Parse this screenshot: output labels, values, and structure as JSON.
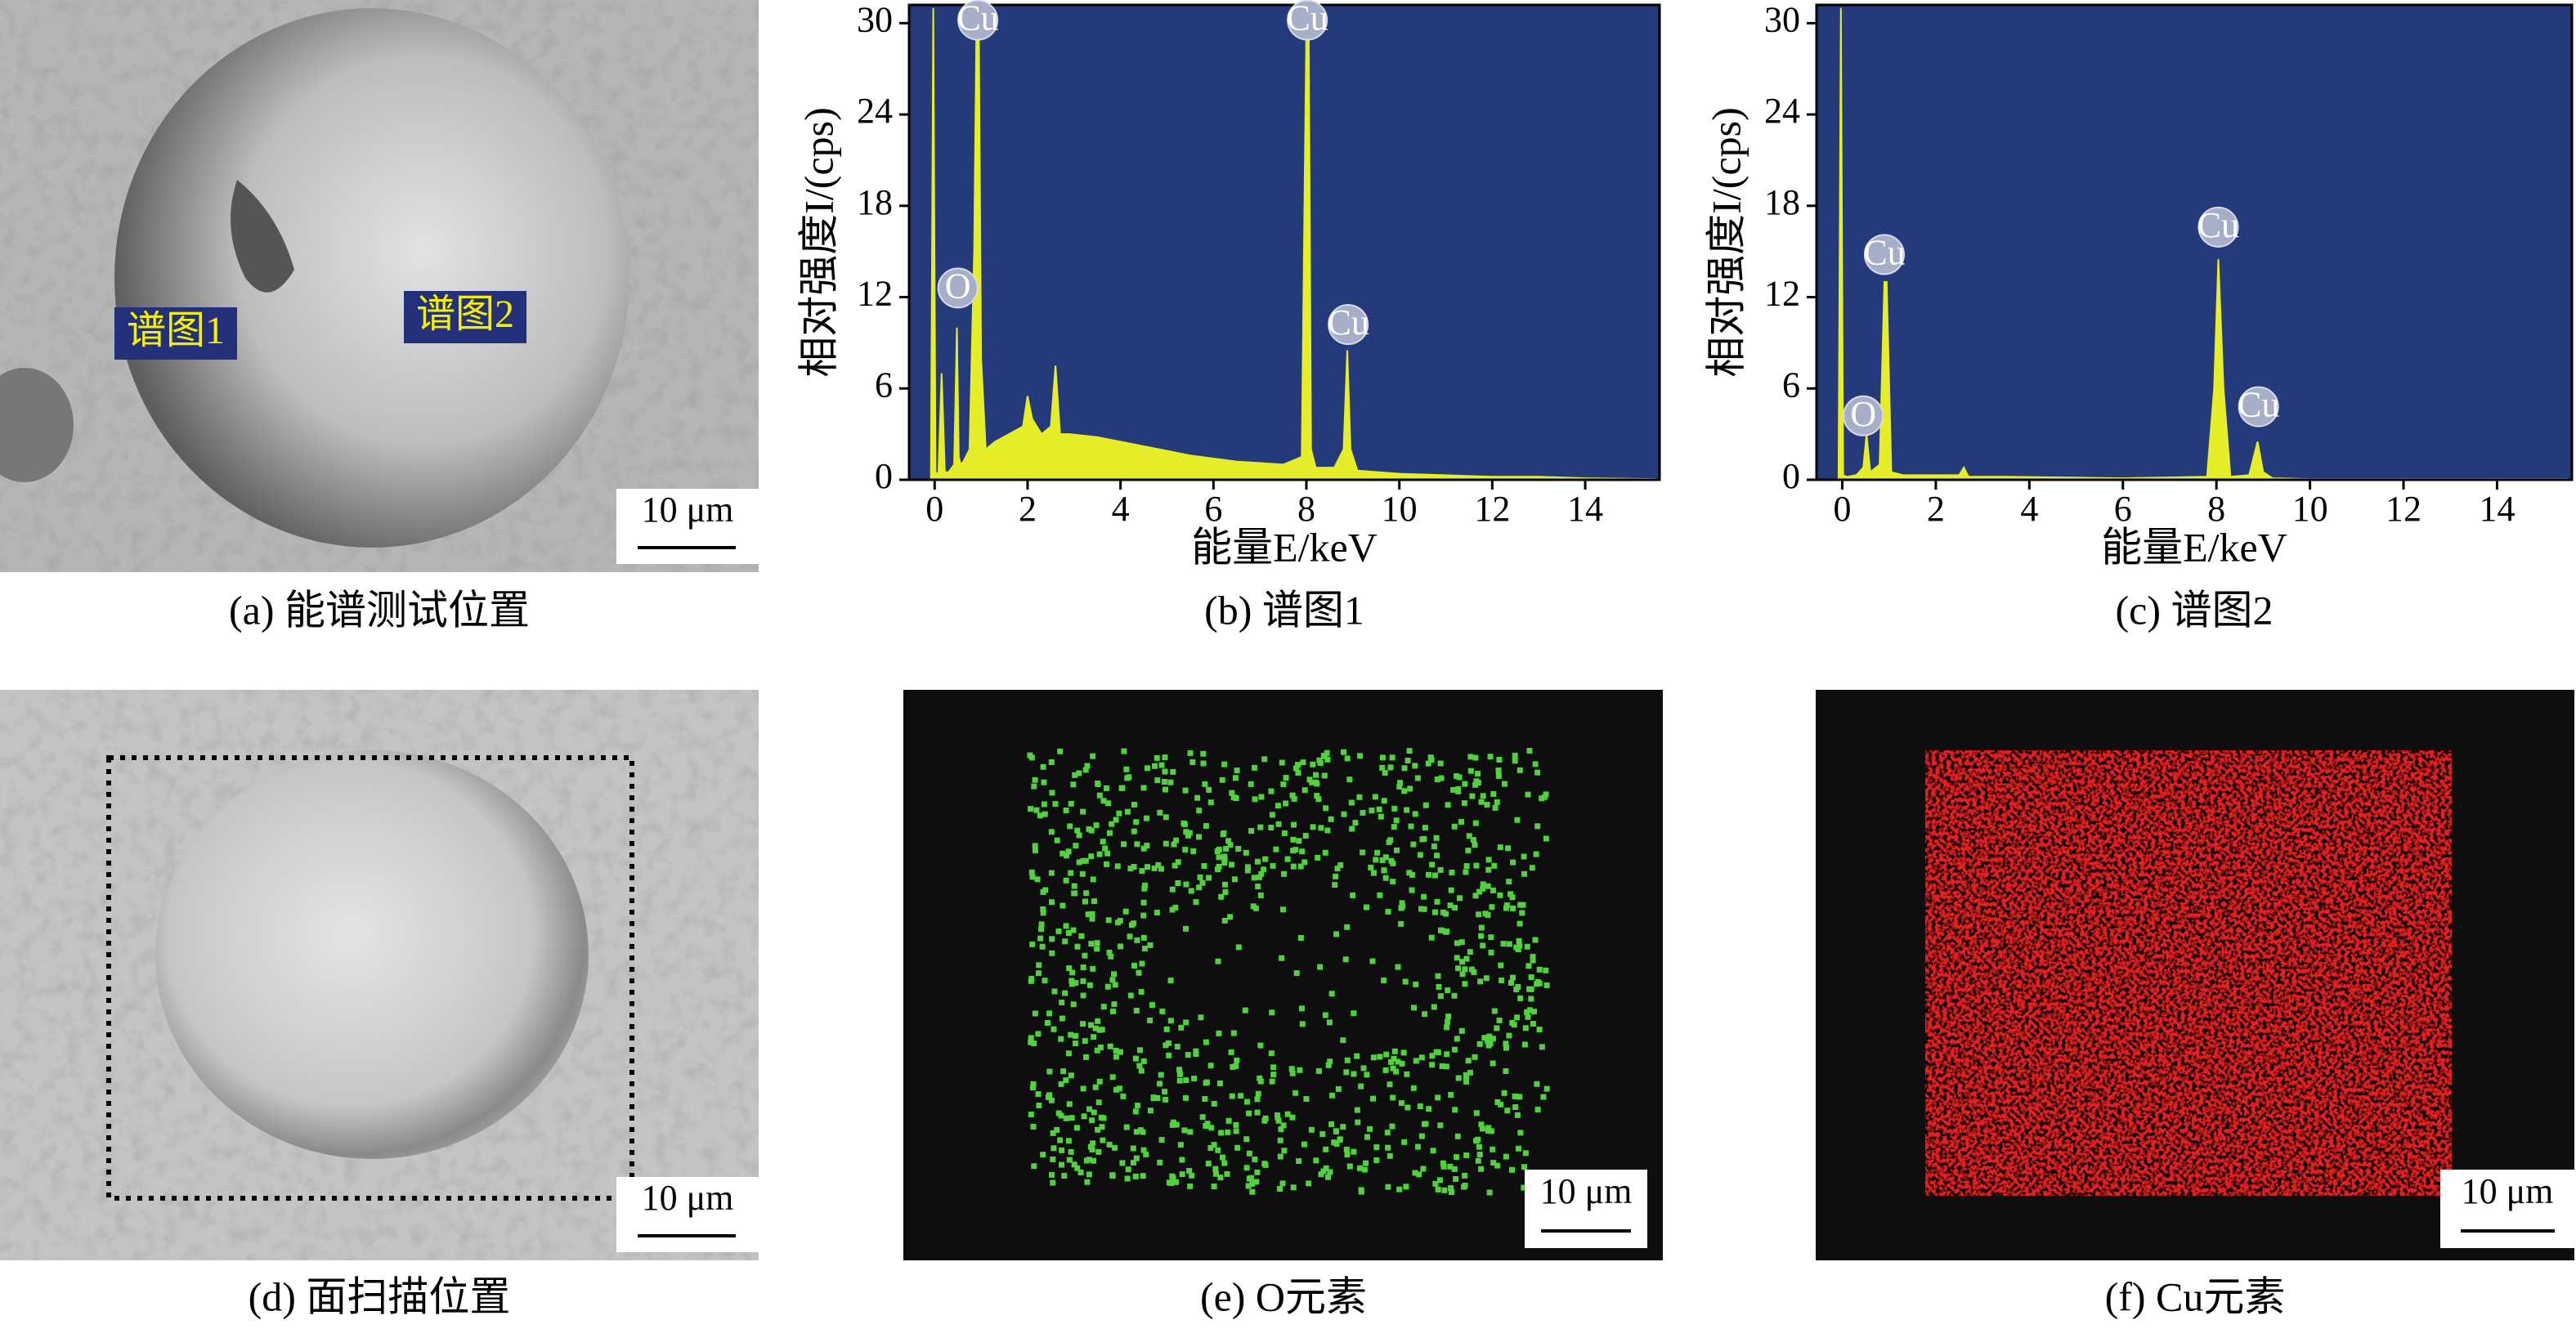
{
  "chart_data": [
    {
      "type": "area",
      "caption": "(b) 谱图1",
      "xlabel": "能量E/keV",
      "ylabel": "相对强度I/(cps)",
      "background": "#243a7a",
      "color": "#e6ee2a",
      "xlim": [
        -0.55,
        15.6
      ],
      "ylim": [
        0,
        31.2
      ],
      "xticks": [
        0,
        2,
        4,
        6,
        8,
        10,
        12,
        14
      ],
      "yticks": [
        0,
        6,
        12,
        18,
        24,
        30
      ],
      "annotations": [
        "Cu",
        "O",
        "Cu",
        "Cu"
      ],
      "x": [
        -0.3,
        -0.08,
        -0.03,
        0.02,
        0.08,
        0.15,
        0.22,
        0.3,
        0.42,
        0.48,
        0.52,
        0.56,
        0.62,
        0.75,
        0.85,
        0.9,
        0.95,
        1.0,
        1.1,
        1.3,
        1.6,
        1.9,
        2.0,
        2.1,
        2.3,
        2.5,
        2.6,
        2.7,
        2.9,
        3.5,
        4.5,
        5.5,
        6.5,
        7.5,
        7.9,
        8.0,
        8.05,
        8.1,
        8.2,
        8.6,
        8.8,
        8.88,
        8.95,
        9.1,
        10,
        11,
        12,
        13,
        14,
        15.5
      ],
      "values": [
        0,
        0,
        31,
        0.5,
        0.3,
        7,
        0.5,
        0.5,
        1,
        10,
        1.5,
        1,
        1.2,
        2,
        15,
        30,
        30,
        8,
        2,
        2.5,
        3,
        3.5,
        5.5,
        4,
        3,
        3.5,
        7.5,
        3,
        3,
        2.8,
        2.2,
        1.6,
        1.2,
        1,
        1.5,
        30,
        30,
        2,
        0.8,
        0.8,
        2,
        8.5,
        2,
        0.6,
        0.4,
        0.3,
        0.2,
        0.2,
        0.1,
        0.05
      ]
    },
    {
      "type": "area",
      "caption": "(c) 谱图2",
      "xlabel": "能量E/keV",
      "ylabel": "相对强度I/(cps)",
      "background": "#243a7a",
      "color": "#e6ee2a",
      "xlim": [
        -0.55,
        15.6
      ],
      "ylim": [
        0,
        31.2
      ],
      "xticks": [
        0,
        2,
        4,
        6,
        8,
        10,
        12,
        14
      ],
      "yticks": [
        0,
        6,
        12,
        18,
        24,
        30
      ],
      "annotations": [
        "O",
        "Cu",
        "Cu",
        "Cu"
      ],
      "x": [
        -0.3,
        -0.08,
        -0.03,
        0.02,
        0.1,
        0.3,
        0.45,
        0.52,
        0.6,
        0.8,
        0.9,
        0.95,
        1.05,
        1.3,
        2.0,
        2.5,
        2.6,
        2.7,
        3.5,
        6,
        7.8,
        7.95,
        8.04,
        8.15,
        8.3,
        8.7,
        8.88,
        9.0,
        9.2,
        10,
        15.5
      ],
      "values": [
        0,
        0,
        31,
        0.3,
        0.2,
        0.3,
        0.8,
        3,
        0.5,
        1,
        13,
        13,
        0.5,
        0.3,
        0.3,
        0.3,
        0.8,
        0.2,
        0.2,
        0.1,
        0.2,
        6,
        14.5,
        6,
        0.2,
        0.3,
        2.5,
        0.5,
        0.1,
        0.05,
        0.05
      ]
    }
  ],
  "panels": [
    {
      "caption": "(a) 能谱测试位置",
      "labels": [
        "谱图1",
        "谱图2"
      ],
      "scale_bar": "10 μm"
    },
    {
      "caption": "(d) 面扫描位置",
      "scale_bar": "10 μm"
    },
    {
      "caption": "(e) O元素",
      "scale_bar": "10 μm"
    },
    {
      "caption": "(f) Cu元素",
      "scale_bar": "10 μm"
    }
  ]
}
